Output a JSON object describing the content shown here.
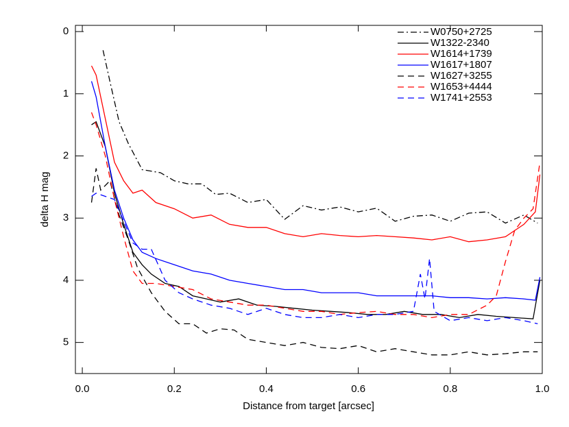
{
  "chart_data": {
    "type": "line",
    "xlabel": "Distance from target [arcsec]",
    "ylabel": "delta H mag",
    "xlim": [
      -0.015,
      1.0
    ],
    "ylim": [
      -0.1,
      5.5
    ],
    "y_inverted": true,
    "xticks": [
      {
        "value": 0,
        "label": "0.0"
      },
      0.2,
      0.4,
      0.6,
      0.8,
      {
        "value": 1,
        "label": "1.0"
      }
    ],
    "yticks": [
      0,
      1,
      2,
      3,
      4,
      5
    ],
    "legend": "upper right",
    "series": [
      {
        "name": "W0750+2725",
        "color": "#000000",
        "dash": "dashdot",
        "x": [
          0.045,
          0.06,
          0.08,
          0.1,
          0.13,
          0.17,
          0.2,
          0.23,
          0.26,
          0.29,
          0.32,
          0.36,
          0.4,
          0.44,
          0.48,
          0.52,
          0.56,
          0.6,
          0.64,
          0.68,
          0.72,
          0.76,
          0.8,
          0.84,
          0.88,
          0.92,
          0.96,
          0.99
        ],
        "values": [
          0.3,
          0.8,
          1.45,
          1.8,
          2.22,
          2.27,
          2.4,
          2.45,
          2.45,
          2.62,
          2.6,
          2.75,
          2.7,
          3.02,
          2.8,
          2.87,
          2.82,
          2.9,
          2.84,
          3.05,
          2.97,
          2.95,
          3.05,
          2.92,
          2.9,
          3.08,
          2.95,
          3.08
        ]
      },
      {
        "name": "W1322-2340",
        "color": "#000000",
        "dash": "solid",
        "x": [
          0.02,
          0.03,
          0.05,
          0.07,
          0.09,
          0.11,
          0.13,
          0.15,
          0.18,
          0.21,
          0.24,
          0.27,
          0.3,
          0.34,
          0.38,
          0.42,
          0.46,
          0.5,
          0.54,
          0.58,
          0.62,
          0.66,
          0.7,
          0.74,
          0.78,
          0.82,
          0.86,
          0.9,
          0.94,
          0.98,
          0.995
        ],
        "values": [
          1.5,
          1.45,
          1.85,
          2.6,
          3.1,
          3.55,
          3.75,
          3.9,
          4.05,
          4.1,
          4.25,
          4.3,
          4.35,
          4.3,
          4.4,
          4.42,
          4.45,
          4.48,
          4.5,
          4.52,
          4.55,
          4.55,
          4.5,
          4.55,
          4.55,
          4.6,
          4.55,
          4.58,
          4.6,
          4.62,
          4.0
        ]
      },
      {
        "name": "W1614+1739",
        "color": "#ff0000",
        "dash": "solid",
        "x": [
          0.02,
          0.03,
          0.05,
          0.07,
          0.09,
          0.11,
          0.13,
          0.16,
          0.2,
          0.24,
          0.28,
          0.32,
          0.36,
          0.4,
          0.44,
          0.48,
          0.52,
          0.56,
          0.6,
          0.64,
          0.68,
          0.72,
          0.76,
          0.8,
          0.84,
          0.88,
          0.92,
          0.96,
          0.985,
          0.995
        ],
        "values": [
          0.55,
          0.7,
          1.4,
          2.1,
          2.4,
          2.6,
          2.55,
          2.75,
          2.85,
          3.0,
          2.95,
          3.1,
          3.15,
          3.15,
          3.25,
          3.3,
          3.25,
          3.28,
          3.3,
          3.28,
          3.3,
          3.32,
          3.35,
          3.3,
          3.38,
          3.35,
          3.3,
          3.1,
          2.9,
          2.3
        ]
      },
      {
        "name": "W1617+1807",
        "color": "#0000ff",
        "dash": "solid",
        "x": [
          0.02,
          0.03,
          0.05,
          0.07,
          0.09,
          0.11,
          0.13,
          0.16,
          0.2,
          0.24,
          0.28,
          0.32,
          0.36,
          0.4,
          0.44,
          0.48,
          0.52,
          0.56,
          0.6,
          0.64,
          0.68,
          0.72,
          0.76,
          0.8,
          0.84,
          0.88,
          0.92,
          0.96,
          0.985,
          0.995
        ],
        "values": [
          0.8,
          1.05,
          1.85,
          2.55,
          3.0,
          3.35,
          3.55,
          3.65,
          3.75,
          3.85,
          3.9,
          4.0,
          4.05,
          4.1,
          4.15,
          4.15,
          4.2,
          4.2,
          4.2,
          4.25,
          4.25,
          4.25,
          4.25,
          4.28,
          4.28,
          4.3,
          4.28,
          4.3,
          4.32,
          3.95
        ]
      },
      {
        "name": "W1627+3255",
        "color": "#000000",
        "dash": "dashed",
        "x": [
          0.02,
          0.03,
          0.04,
          0.06,
          0.08,
          0.1,
          0.12,
          0.15,
          0.18,
          0.21,
          0.24,
          0.27,
          0.3,
          0.33,
          0.36,
          0.4,
          0.44,
          0.48,
          0.52,
          0.56,
          0.6,
          0.64,
          0.68,
          0.72,
          0.76,
          0.8,
          0.84,
          0.88,
          0.92,
          0.96,
          0.99
        ],
        "values": [
          2.75,
          2.2,
          2.55,
          2.4,
          2.95,
          3.35,
          3.8,
          4.2,
          4.5,
          4.7,
          4.7,
          4.85,
          4.78,
          4.8,
          4.95,
          5.0,
          5.05,
          5.0,
          5.08,
          5.1,
          5.05,
          5.15,
          5.1,
          5.15,
          5.2,
          5.2,
          5.15,
          5.2,
          5.18,
          5.15,
          5.15
        ]
      },
      {
        "name": "W1653+4444",
        "color": "#ff0000",
        "dash": "dashed",
        "x": [
          0.02,
          0.03,
          0.05,
          0.07,
          0.09,
          0.11,
          0.13,
          0.16,
          0.2,
          0.24,
          0.28,
          0.32,
          0.36,
          0.4,
          0.44,
          0.48,
          0.52,
          0.56,
          0.6,
          0.64,
          0.68,
          0.72,
          0.76,
          0.8,
          0.84,
          0.88,
          0.9,
          0.92,
          0.94,
          0.96,
          0.98,
          0.995
        ],
        "values": [
          1.3,
          1.5,
          2.0,
          2.7,
          3.3,
          3.85,
          4.05,
          4.05,
          4.1,
          4.15,
          4.3,
          4.35,
          4.4,
          4.4,
          4.45,
          4.5,
          4.5,
          4.55,
          4.52,
          4.5,
          4.55,
          4.55,
          4.6,
          4.55,
          4.55,
          4.4,
          4.25,
          3.7,
          3.2,
          3.0,
          2.85,
          2.1
        ]
      },
      {
        "name": "W1741+2553",
        "color": "#0000ff",
        "dash": "dashed",
        "x": [
          0.02,
          0.03,
          0.05,
          0.07,
          0.09,
          0.11,
          0.13,
          0.15,
          0.18,
          0.21,
          0.24,
          0.28,
          0.32,
          0.36,
          0.4,
          0.44,
          0.48,
          0.52,
          0.56,
          0.6,
          0.64,
          0.68,
          0.72,
          0.735,
          0.745,
          0.755,
          0.765,
          0.8,
          0.84,
          0.88,
          0.92,
          0.96,
          0.99
        ],
        "values": [
          2.65,
          2.6,
          2.65,
          2.7,
          3.05,
          3.4,
          3.5,
          3.5,
          4.0,
          4.2,
          4.3,
          4.4,
          4.45,
          4.55,
          4.45,
          4.55,
          4.6,
          4.6,
          4.55,
          4.6,
          4.55,
          4.55,
          4.5,
          3.9,
          4.3,
          3.65,
          4.5,
          4.65,
          4.6,
          4.65,
          4.6,
          4.65,
          4.7
        ]
      }
    ]
  }
}
